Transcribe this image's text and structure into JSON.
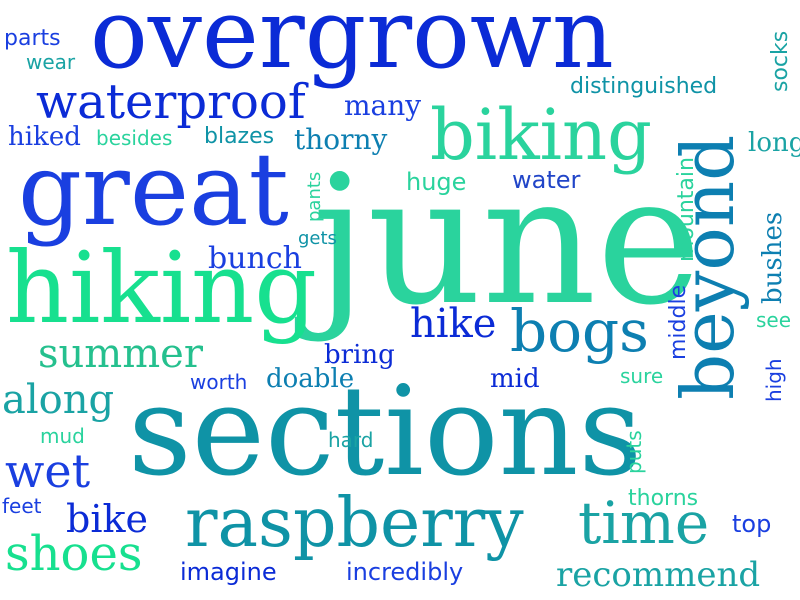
{
  "cloud": {
    "words": {
      "overgrown": "overgrown",
      "june": "june",
      "sections": "sections",
      "great": "great",
      "hiking": "hiking",
      "biking": "biking",
      "waterproof": "waterproof",
      "beyond": "beyond",
      "raspberry": "raspberry",
      "time": "time",
      "bogs": "bogs",
      "summer": "summer",
      "shoes": "shoes",
      "wet": "wet",
      "along": "along",
      "hike": "hike",
      "bike": "bike",
      "recommend": "recommend",
      "many": "many",
      "parts": "parts",
      "wear": "wear",
      "hiked": "hiked",
      "besides": "besides",
      "blazes": "blazes",
      "thorny": "thorny",
      "distinguished": "distinguished",
      "socks": "socks",
      "long": "long",
      "huge": "huge",
      "water": "water",
      "mountain": "mountain",
      "pants": "pants",
      "gets": "gets",
      "bunch": "bunch",
      "bushes": "bushes",
      "middle": "middle",
      "see": "see",
      "bring": "bring",
      "mid": "mid",
      "worth": "worth",
      "doable": "doable",
      "sure": "sure",
      "high": "high",
      "mud": "mud",
      "hard": "hard",
      "puts": "puts",
      "feet": "feet",
      "thorns": "thorns",
      "top": "top",
      "imagine": "imagine",
      "incredibly": "incredibly"
    }
  }
}
